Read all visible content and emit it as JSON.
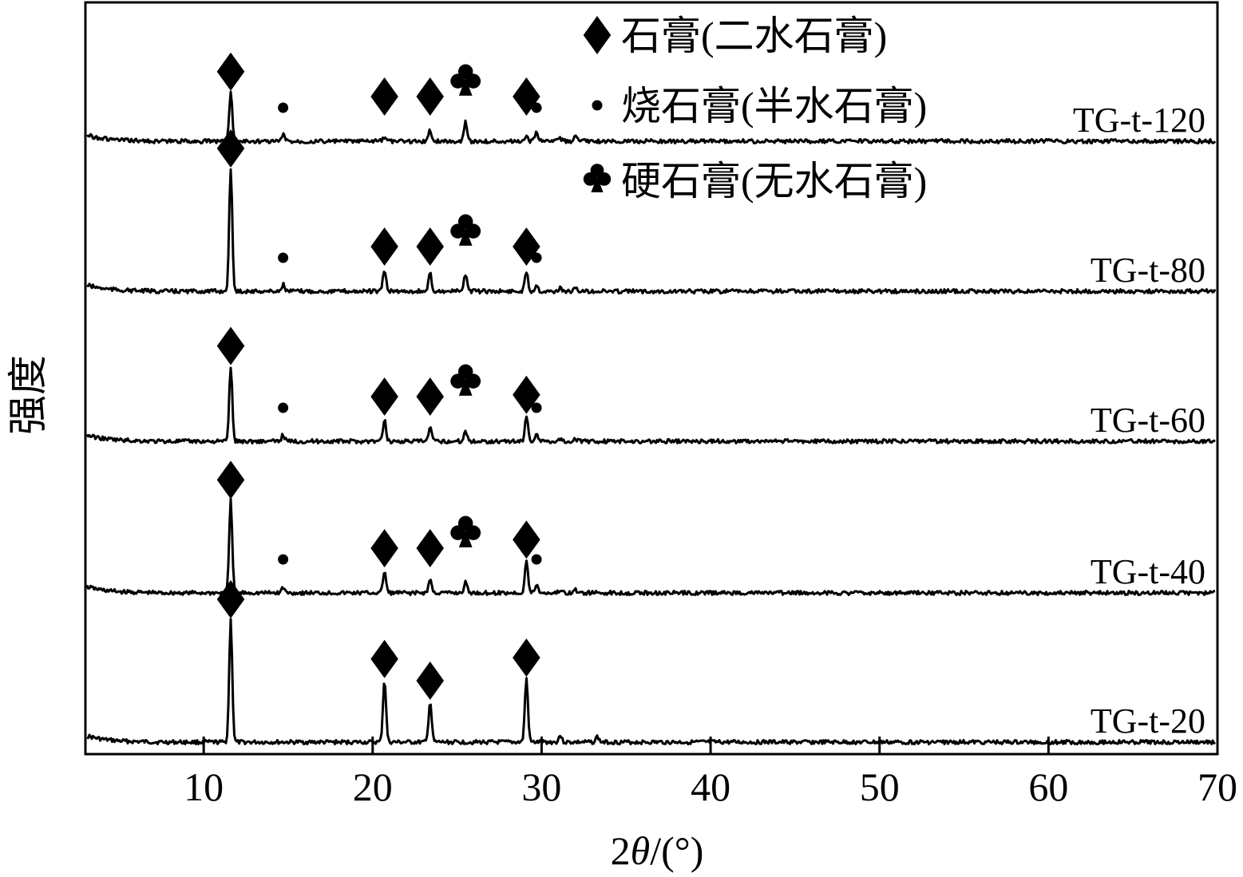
{
  "chart_data": {
    "type": "line",
    "title": "",
    "xlabel_prefix": "2",
    "xlabel_italic": "θ",
    "xlabel_suffix": "/(°)",
    "ylabel": "强度",
    "xlim": [
      3,
      70
    ],
    "xticks": [
      10,
      20,
      30,
      40,
      50,
      60,
      70
    ],
    "grid": false,
    "stacked_offset": true,
    "legend": {
      "placement": "top-center",
      "entries": [
        {
          "symbol": "diamond",
          "label": "石膏(二水石膏)"
        },
        {
          "symbol": "dot",
          "label": "烧石膏(半水石膏)"
        },
        {
          "symbol": "club",
          "label": "硬石膏(无水石膏)"
        }
      ]
    },
    "series": [
      {
        "name": "TG-t-20",
        "peaks": [
          [
            11.6,
            0.9
          ],
          [
            14.7,
            0.0
          ],
          [
            20.7,
            0.46
          ],
          [
            23.4,
            0.3
          ],
          [
            25.5,
            0.0
          ],
          [
            29.1,
            0.47
          ],
          [
            29.7,
            0.0
          ],
          [
            31.1,
            0.05
          ],
          [
            33.3,
            0.04
          ]
        ],
        "markers": [
          {
            "symbol": "diamond",
            "x": 11.6
          },
          {
            "symbol": "diamond",
            "x": 20.7
          },
          {
            "symbol": "diamond",
            "x": 23.4
          },
          {
            "symbol": "diamond",
            "x": 29.1
          }
        ]
      },
      {
        "name": "TG-t-40",
        "peaks": [
          [
            11.6,
            0.68
          ],
          [
            14.7,
            0.04
          ],
          [
            20.7,
            0.16
          ],
          [
            23.4,
            0.1
          ],
          [
            25.5,
            0.08
          ],
          [
            29.1,
            0.24
          ],
          [
            29.7,
            0.06
          ],
          [
            31.1,
            0.02
          ],
          [
            32.0,
            0.02
          ]
        ],
        "markers": [
          {
            "symbol": "diamond",
            "x": 11.6
          },
          {
            "symbol": "dot",
            "x": 14.7
          },
          {
            "symbol": "diamond",
            "x": 20.7
          },
          {
            "symbol": "diamond",
            "x": 23.4
          },
          {
            "symbol": "club",
            "x": 25.5
          },
          {
            "symbol": "diamond",
            "x": 29.1
          },
          {
            "symbol": "dot",
            "x": 29.7
          }
        ]
      },
      {
        "name": "TG-t-60",
        "peaks": [
          [
            11.6,
            0.55
          ],
          [
            14.7,
            0.05
          ],
          [
            20.7,
            0.16
          ],
          [
            23.4,
            0.1
          ],
          [
            25.5,
            0.08
          ],
          [
            29.1,
            0.19
          ],
          [
            29.7,
            0.06
          ],
          [
            31.1,
            0.02
          ],
          [
            32.0,
            0.02
          ]
        ],
        "markers": [
          {
            "symbol": "diamond",
            "x": 11.6
          },
          {
            "symbol": "dot",
            "x": 14.7
          },
          {
            "symbol": "diamond",
            "x": 20.7
          },
          {
            "symbol": "diamond",
            "x": 23.4
          },
          {
            "symbol": "club",
            "x": 25.5
          },
          {
            "symbol": "diamond",
            "x": 29.1
          },
          {
            "symbol": "dot",
            "x": 29.7
          }
        ]
      },
      {
        "name": "TG-t-80",
        "peaks": [
          [
            11.6,
            0.9
          ],
          [
            14.7,
            0.05
          ],
          [
            20.7,
            0.16
          ],
          [
            23.4,
            0.13
          ],
          [
            25.5,
            0.13
          ],
          [
            29.1,
            0.15
          ],
          [
            29.7,
            0.05
          ],
          [
            31.1,
            0.02
          ],
          [
            32.0,
            0.02
          ]
        ],
        "markers": [
          {
            "symbol": "diamond",
            "x": 11.6
          },
          {
            "symbol": "dot",
            "x": 14.7
          },
          {
            "symbol": "diamond",
            "x": 20.7
          },
          {
            "symbol": "diamond",
            "x": 23.4
          },
          {
            "symbol": "club",
            "x": 25.5
          },
          {
            "symbol": "diamond",
            "x": 29.1
          },
          {
            "symbol": "dot",
            "x": 29.7
          }
        ]
      },
      {
        "name": "TG-t-120",
        "peaks": [
          [
            11.6,
            0.36
          ],
          [
            14.7,
            0.05
          ],
          [
            20.7,
            0.03
          ],
          [
            23.4,
            0.08
          ],
          [
            25.5,
            0.15
          ],
          [
            29.1,
            0.03
          ],
          [
            29.7,
            0.08
          ],
          [
            31.1,
            0.02
          ],
          [
            32.0,
            0.03
          ]
        ],
        "markers": [
          {
            "symbol": "diamond",
            "x": 11.6
          },
          {
            "symbol": "dot",
            "x": 14.7
          },
          {
            "symbol": "diamond",
            "x": 20.7
          },
          {
            "symbol": "diamond",
            "x": 23.4
          },
          {
            "symbol": "club",
            "x": 25.5
          },
          {
            "symbol": "diamond",
            "x": 29.1
          },
          {
            "symbol": "dot",
            "x": 29.7
          }
        ]
      }
    ]
  }
}
